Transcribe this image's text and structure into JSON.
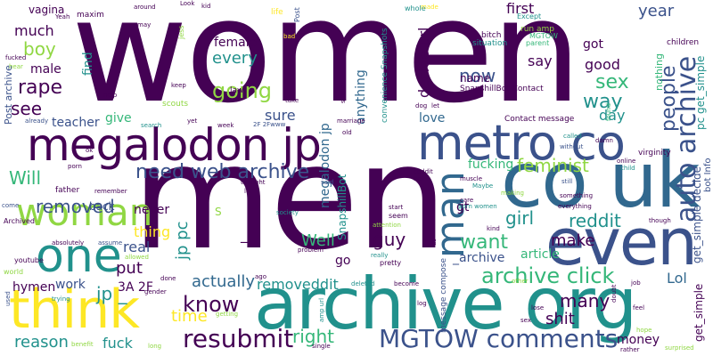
{
  "palette": {
    "dark_purple": "#440154",
    "indigo": "#3b528b",
    "blue": "#31688e",
    "teal": "#21918c",
    "green": "#35b779",
    "lime": "#90d743",
    "yellow": "#fde725"
  },
  "words": [
    {
      "text": "women",
      "color": "#440154"
    },
    {
      "text": "men",
      "color": "#440154"
    },
    {
      "text": "archive org",
      "color": "#21918c"
    },
    {
      "text": "megalodon jp",
      "color": "#440154"
    },
    {
      "text": "metro co",
      "color": "#3b528b"
    },
    {
      "text": "co uk",
      "color": "#31688e"
    },
    {
      "text": "even",
      "color": "#3b528b"
    },
    {
      "text": "think",
      "color": "#fde725"
    },
    {
      "text": "woman",
      "color": "#90d743"
    },
    {
      "text": "one",
      "color": "#21918c"
    },
    {
      "text": "man",
      "color": "#31688e"
    },
    {
      "text": "auto archive",
      "color": "#3b528b"
    },
    {
      "text": "MGTOW comments",
      "color": "#3b528b"
    },
    {
      "text": "resubmit",
      "color": "#440154"
    },
    {
      "text": "archive click",
      "color": "#35b779"
    },
    {
      "text": "need web archive",
      "color": "#3b528b"
    },
    {
      "text": "going",
      "color": "#90d743"
    },
    {
      "text": "know",
      "color": "#440154"
    },
    {
      "text": "people",
      "color": "#3b528b"
    },
    {
      "text": "removed",
      "color": "#3b528b"
    },
    {
      "text": "want",
      "color": "#35b779"
    },
    {
      "text": "reddit",
      "color": "#21918c"
    },
    {
      "text": "feminist",
      "color": "#90d743"
    },
    {
      "text": "sex",
      "color": "#35b779"
    },
    {
      "text": "way",
      "color": "#21918c"
    },
    {
      "text": "rape",
      "color": "#440154"
    },
    {
      "text": "see",
      "color": "#440154"
    },
    {
      "text": "boy",
      "color": "#90d743"
    },
    {
      "text": "now",
      "color": "#3b528b"
    },
    {
      "text": "Will",
      "color": "#35b779"
    },
    {
      "text": "guy",
      "color": "#440154"
    },
    {
      "text": "girl",
      "color": "#21918c"
    },
    {
      "text": "right",
      "color": "#35b779"
    },
    {
      "text": "thing",
      "color": "#fde725"
    },
    {
      "text": "time",
      "color": "#fde725"
    },
    {
      "text": "fuck",
      "color": "#21918c"
    },
    {
      "text": "reason",
      "color": "#21918c"
    },
    {
      "text": "put",
      "color": "#440154"
    },
    {
      "text": "jp pc",
      "color": "#21918c"
    },
    {
      "text": "jp _",
      "color": "#21918c"
    },
    {
      "text": "Well",
      "color": "#35b779"
    },
    {
      "text": "make",
      "color": "#440154"
    },
    {
      "text": "actually",
      "color": "#31688e"
    },
    {
      "text": "removeddit",
      "color": "#21918c"
    },
    {
      "text": "many",
      "color": "#440154"
    },
    {
      "text": "shit",
      "color": "#440154"
    },
    {
      "text": "Lol",
      "color": "#31688e"
    },
    {
      "text": "year",
      "color": "#3b528b"
    },
    {
      "text": "every",
      "color": "#21918c"
    },
    {
      "text": "female",
      "color": "#440154"
    },
    {
      "text": "good",
      "color": "#440154"
    },
    {
      "text": "say",
      "color": "#440154"
    },
    {
      "text": "got",
      "color": "#440154"
    },
    {
      "text": "first",
      "color": "#440154"
    },
    {
      "text": "much",
      "color": "#440154"
    },
    {
      "text": "male",
      "color": "#440154"
    },
    {
      "text": "find",
      "color": "#21918c"
    },
    {
      "text": "sure",
      "color": "#3b528b"
    },
    {
      "text": "love",
      "color": "#31688e"
    },
    {
      "text": "day",
      "color": "#21918c"
    },
    {
      "text": "name",
      "color": "#440154"
    },
    {
      "text": "teacher",
      "color": "#3b528b"
    },
    {
      "text": "give",
      "color": "#35b779"
    },
    {
      "text": "never",
      "color": "#440154"
    },
    {
      "text": "back",
      "color": "#3b528b"
    },
    {
      "text": "real",
      "color": "#3b528b"
    },
    {
      "text": "work",
      "color": "#3b528b"
    },
    {
      "text": "hymen",
      "color": "#440154"
    },
    {
      "text": "3A 2F",
      "color": "#440154"
    },
    {
      "text": "go",
      "color": "#440154"
    },
    {
      "text": "gt",
      "color": "#440154"
    },
    {
      "text": "_archive",
      "color": "#3b528b"
    },
    {
      "text": "article",
      "color": "#35b779"
    },
    {
      "text": "fucking",
      "color": "#35b779"
    },
    {
      "text": "money",
      "color": "#440154"
    },
    {
      "text": "decide url",
      "color": "#440154"
    },
    {
      "text": "anything",
      "color": "#31688e"
    },
    {
      "text": "megalodon jp",
      "color": "#31688e"
    },
    {
      "text": "SnapshillBot",
      "color": "#21918c"
    },
    {
      "text": "get_simple decide",
      "color": "#3b528b"
    },
    {
      "text": "pc get_simple",
      "color": "#21918c"
    },
    {
      "text": "bot Info",
      "color": "#3b528b"
    },
    {
      "text": "get_simple",
      "color": "#440154"
    },
    {
      "text": "vagina",
      "color": "#440154"
    },
    {
      "text": "maxim",
      "color": "#440154"
    },
    {
      "text": "Post archive",
      "color": "#3b528b"
    },
    {
      "text": "Contact message",
      "color": "#440154"
    },
    {
      "text": "SnapshillBot Contact",
      "color": "#440154"
    },
    {
      "text": "convenience Snapshots",
      "color": "#21918c"
    },
    {
      "text": "message compose",
      "color": "#3b528b"
    },
    {
      "text": "nothing",
      "color": "#35b779"
    },
    {
      "text": "children",
      "color": "#440154"
    },
    {
      "text": "virginity",
      "color": "#440154"
    },
    {
      "text": "bitch",
      "color": "#440154"
    },
    {
      "text": "situation",
      "color": "#21918c"
    },
    {
      "text": "run amp",
      "color": "#90d743"
    },
    {
      "text": "MGTOW",
      "color": "#35b779"
    },
    {
      "text": "parent",
      "color": "#35b779"
    },
    {
      "text": "Except",
      "color": "#21918c"
    },
    {
      "text": "whole",
      "color": "#21918c"
    },
    {
      "text": "made",
      "color": "#fde725"
    },
    {
      "text": "law",
      "color": "#440154"
    },
    {
      "text": "keep",
      "color": "#440154"
    },
    {
      "text": "scouts",
      "color": "#90d743"
    },
    {
      "text": "help",
      "color": "#440154"
    },
    {
      "text": "Look",
      "color": "#440154"
    },
    {
      "text": "kid",
      "color": "#440154"
    },
    {
      "text": "around",
      "color": "#440154"
    },
    {
      "text": "may",
      "color": "#440154"
    },
    {
      "text": "Yeah",
      "color": "#440154"
    },
    {
      "text": "fucked",
      "color": "#440154"
    },
    {
      "text": "hear",
      "color": "#90d743"
    },
    {
      "text": "already",
      "color": "#3b528b"
    },
    {
      "text": "search",
      "color": "#21918c"
    },
    {
      "text": "yet",
      "color": "#440154"
    },
    {
      "text": "week",
      "color": "#440154"
    },
    {
      "text": "2F 2Fwww",
      "color": "#3b528b"
    },
    {
      "text": "take",
      "color": "#440154"
    },
    {
      "text": "marriage",
      "color": "#440154"
    },
    {
      "text": "dog",
      "color": "#440154"
    },
    {
      "text": "old",
      "color": "#440154"
    },
    {
      "text": "life",
      "color": "#fde725"
    },
    {
      "text": "Post",
      "color": "#3b528b"
    },
    {
      "text": "jess",
      "color": "#90d743"
    },
    {
      "text": "bad",
      "color": "#fde725"
    },
    {
      "text": "sexual",
      "color": "#440154"
    },
    {
      "text": "let",
      "color": "#440154"
    },
    {
      "text": "called",
      "color": "#21918c"
    },
    {
      "text": "damn",
      "color": "#440154"
    },
    {
      "text": "without",
      "color": "#3b528b"
    },
    {
      "text": "online",
      "color": "#440154"
    },
    {
      "text": "child",
      "color": "#21918c"
    },
    {
      "text": "found",
      "color": "#35b779"
    },
    {
      "text": "still",
      "color": "#3b528b"
    },
    {
      "text": "something",
      "color": "#440154"
    },
    {
      "text": "everything",
      "color": "#440154"
    },
    {
      "text": "though",
      "color": "#440154"
    },
    {
      "text": "Maybe",
      "color": "#21918c"
    },
    {
      "text": "making",
      "color": "#90d743"
    },
    {
      "text": "muscle",
      "color": "#440154"
    },
    {
      "text": "ceddit",
      "color": "#440154"
    },
    {
      "text": "bet",
      "color": "#440154"
    },
    {
      "text": "care",
      "color": "#440154"
    },
    {
      "text": "porn women",
      "color": "#21918c"
    },
    {
      "text": "kind",
      "color": "#440154"
    },
    {
      "text": "start",
      "color": "#440154"
    },
    {
      "text": "seem",
      "color": "#440154"
    },
    {
      "text": "attention",
      "color": "#90d743"
    },
    {
      "text": "society",
      "color": "#21918c"
    },
    {
      "text": "said",
      "color": "#3b528b"
    },
    {
      "text": "lot",
      "color": "#440154"
    },
    {
      "text": "thought",
      "color": "#440154"
    },
    {
      "text": "father",
      "color": "#440154"
    },
    {
      "text": "remember",
      "color": "#440154"
    },
    {
      "text": "porn",
      "color": "#440154"
    },
    {
      "text": "come",
      "color": "#3b528b"
    },
    {
      "text": "Archived",
      "color": "#440154"
    },
    {
      "text": "youtube",
      "color": "#440154"
    },
    {
      "text": "world",
      "color": "#90d743"
    },
    {
      "text": "used",
      "color": "#3b528b"
    },
    {
      "text": "trying",
      "color": "#21918c"
    },
    {
      "text": "absolutely",
      "color": "#440154"
    },
    {
      "text": "assume",
      "color": "#3b528b"
    },
    {
      "text": "allowed",
      "color": "#90d743"
    },
    {
      "text": "gender",
      "color": "#440154"
    },
    {
      "text": "benefit",
      "color": "#90d743"
    },
    {
      "text": "long",
      "color": "#90d743"
    },
    {
      "text": "done",
      "color": "#440154"
    },
    {
      "text": "getting",
      "color": "#90d743"
    },
    {
      "text": "ago",
      "color": "#440154"
    },
    {
      "text": "amp url",
      "color": "#21918c"
    },
    {
      "text": "single",
      "color": "#440154"
    },
    {
      "text": "problem",
      "color": "#440154"
    },
    {
      "text": "really",
      "color": "#21918c"
    },
    {
      "text": "pretty",
      "color": "#440154"
    },
    {
      "text": "deleted",
      "color": "#21918c"
    },
    {
      "text": "become",
      "color": "#440154"
    },
    {
      "text": "log",
      "color": "#440154"
    },
    {
      "text": "lose",
      "color": "#440154"
    },
    {
      "text": "sex",
      "color": "#440154"
    },
    {
      "text": "other",
      "color": "#90d743"
    },
    {
      "text": "feel",
      "color": "#440154"
    },
    {
      "text": "doubt",
      "color": "#440154"
    },
    {
      "text": "rather",
      "color": "#440154"
    },
    {
      "text": "hope",
      "color": "#90d743"
    },
    {
      "text": "surprised",
      "color": "#90d743"
    },
    {
      "text": "job",
      "color": "#440154"
    },
    {
      "text": "S",
      "color": "#90d743"
    },
    {
      "text": "ok",
      "color": "#440154"
    },
    {
      "text": "as",
      "color": "#440154"
    },
    {
      "text": "_",
      "color": "#440154"
    }
  ]
}
